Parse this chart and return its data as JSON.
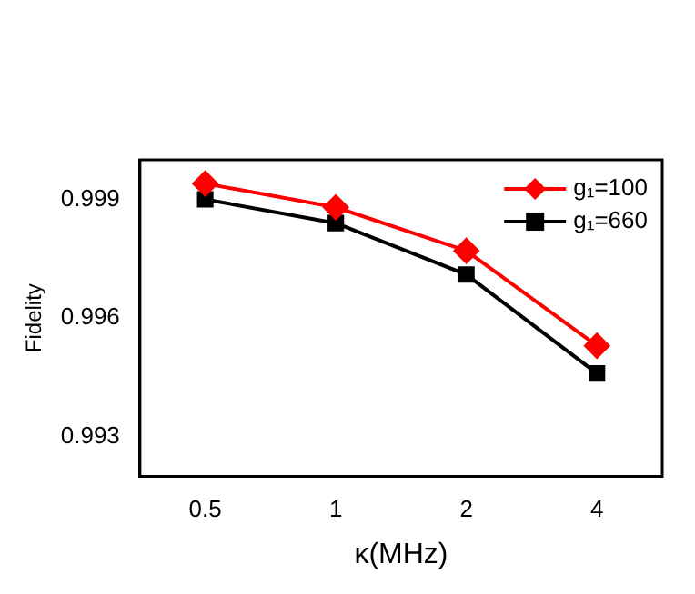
{
  "chart_data": {
    "type": "line",
    "xlabel": "κ(MHz)",
    "ylabel": "Fidelity",
    "categories": [
      "0.5",
      "1",
      "2",
      "4"
    ],
    "series": [
      {
        "name": "g₁=100",
        "color": "#ff0000",
        "values": [
          0.9994,
          0.9988,
          0.9977,
          0.9953
        ],
        "marker": "diamond"
      },
      {
        "name": "g₁=660",
        "color": "#000000",
        "values": [
          0.999,
          0.9984,
          0.9971,
          0.9946
        ],
        "marker": "square"
      }
    ],
    "ylim": [
      0.992,
      1.0
    ],
    "yticks": [
      0.993,
      0.996,
      0.999
    ],
    "grid": false,
    "legend": "top right",
    "line_style": "solid"
  }
}
